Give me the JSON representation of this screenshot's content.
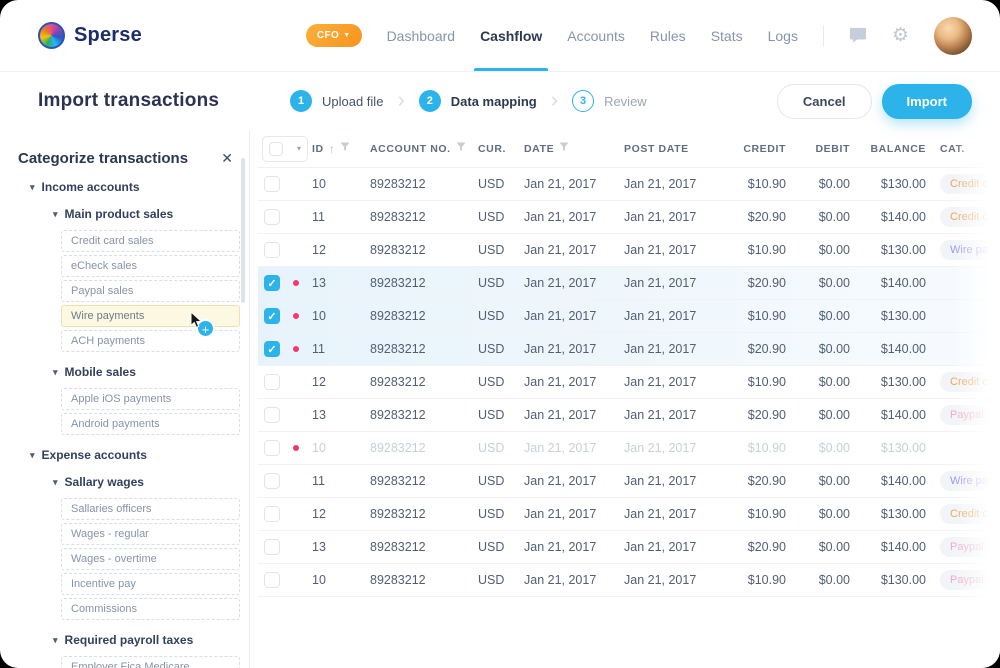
{
  "brand": {
    "name": "Sperse"
  },
  "topnav": {
    "role_badge": {
      "label": "CFO"
    },
    "items": [
      {
        "label": "Dashboard",
        "active": false
      },
      {
        "label": "Cashflow",
        "active": true
      },
      {
        "label": "Accounts",
        "active": false
      },
      {
        "label": "Rules",
        "active": false
      },
      {
        "label": "Stats",
        "active": false
      },
      {
        "label": "Logs",
        "active": false
      }
    ]
  },
  "page_header": {
    "title": "Import transactions",
    "steps": [
      {
        "number": "1",
        "label": "Upload file",
        "state": "done"
      },
      {
        "number": "2",
        "label": "Data mapping",
        "state": "active"
      },
      {
        "number": "3",
        "label": "Review",
        "state": "upcoming"
      }
    ],
    "cancel_label": "Cancel",
    "import_label": "Import"
  },
  "sidebar": {
    "title": "Categorize transactions",
    "tree": [
      {
        "label": "Income accounts",
        "type": "group1"
      },
      {
        "label": "Main product sales",
        "type": "group2"
      },
      {
        "label": "Credit card sales",
        "type": "leaf"
      },
      {
        "label": "eCheck sales",
        "type": "leaf"
      },
      {
        "label": "Paypal sales",
        "type": "leaf"
      },
      {
        "label": "Wire payments",
        "type": "leaf",
        "highlighted": true
      },
      {
        "label": "ACH payments",
        "type": "leaf"
      },
      {
        "label": "Mobile sales",
        "type": "group2"
      },
      {
        "label": "Apple iOS payments",
        "type": "leaf"
      },
      {
        "label": "Android payments",
        "type": "leaf"
      },
      {
        "label": "Expense accounts",
        "type": "group1"
      },
      {
        "label": "Sallary wages",
        "type": "group2"
      },
      {
        "label": "Sallaries officers",
        "type": "leaf"
      },
      {
        "label": "Wages - regular",
        "type": "leaf"
      },
      {
        "label": "Wages - overtime",
        "type": "leaf"
      },
      {
        "label": "Incentive pay",
        "type": "leaf"
      },
      {
        "label": "Commissions",
        "type": "leaf"
      },
      {
        "label": "Required payroll taxes",
        "type": "group2"
      },
      {
        "label": "Employer Fica Medicare",
        "type": "leaf"
      }
    ]
  },
  "table": {
    "columns": [
      {
        "key": "id",
        "label": "ID",
        "sort": true,
        "filter": true
      },
      {
        "key": "acct",
        "label": "ACCOUNT NO.",
        "filter": true
      },
      {
        "key": "cur",
        "label": "CUR."
      },
      {
        "key": "date",
        "label": "DATE",
        "filter": true
      },
      {
        "key": "post",
        "label": "POST DATE"
      },
      {
        "key": "credit",
        "label": "CREDIT"
      },
      {
        "key": "debit",
        "label": "DEBIT"
      },
      {
        "key": "balance",
        "label": "BALANCE"
      },
      {
        "key": "cat",
        "label": "CAT."
      }
    ],
    "rows": [
      {
        "id": "10",
        "acct": "89283212",
        "cur": "USD",
        "date": "Jan 21, 2017",
        "post": "Jan 21, 2017",
        "credit": "$10.90",
        "debit": "$0.00",
        "balance": "$130.00",
        "cat": "Credit card sales",
        "cat_color": "orange",
        "checked": false,
        "dot": false,
        "muted": false
      },
      {
        "id": "11",
        "acct": "89283212",
        "cur": "USD",
        "date": "Jan 21, 2017",
        "post": "Jan 21, 2017",
        "credit": "$20.90",
        "debit": "$0.00",
        "balance": "$140.00",
        "cat": "Credit card sales",
        "cat_color": "orange",
        "checked": false,
        "dot": false,
        "muted": false
      },
      {
        "id": "12",
        "acct": "89283212",
        "cur": "USD",
        "date": "Jan 21, 2017",
        "post": "Jan 21, 2017",
        "credit": "$10.90",
        "debit": "$0.00",
        "balance": "$130.00",
        "cat": "Wire payments",
        "cat_color": "purple",
        "checked": false,
        "dot": false,
        "muted": false
      },
      {
        "id": "13",
        "acct": "89283212",
        "cur": "USD",
        "date": "Jan 21, 2017",
        "post": "Jan 21, 2017",
        "credit": "$20.90",
        "debit": "$0.00",
        "balance": "$140.00",
        "cat": null,
        "cat_color": null,
        "checked": true,
        "dot": true,
        "muted": false
      },
      {
        "id": "10",
        "acct": "89283212",
        "cur": "USD",
        "date": "Jan 21, 2017",
        "post": "Jan 21, 2017",
        "credit": "$10.90",
        "debit": "$0.00",
        "balance": "$130.00",
        "cat": null,
        "cat_color": null,
        "checked": true,
        "dot": true,
        "muted": false
      },
      {
        "id": "11",
        "acct": "89283212",
        "cur": "USD",
        "date": "Jan 21, 2017",
        "post": "Jan 21, 2017",
        "credit": "$20.90",
        "debit": "$0.00",
        "balance": "$140.00",
        "cat": null,
        "cat_color": null,
        "checked": true,
        "dot": true,
        "muted": false
      },
      {
        "id": "12",
        "acct": "89283212",
        "cur": "USD",
        "date": "Jan 21, 2017",
        "post": "Jan 21, 2017",
        "credit": "$10.90",
        "debit": "$0.00",
        "balance": "$130.00",
        "cat": "Credit card sales",
        "cat_color": "orange",
        "checked": false,
        "dot": false,
        "muted": false
      },
      {
        "id": "13",
        "acct": "89283212",
        "cur": "USD",
        "date": "Jan 21, 2017",
        "post": "Jan 21, 2017",
        "credit": "$20.90",
        "debit": "$0.00",
        "balance": "$140.00",
        "cat": "Paypal sales",
        "cat_color": "pink",
        "checked": false,
        "dot": false,
        "muted": false
      },
      {
        "id": "10",
        "acct": "89283212",
        "cur": "USD",
        "date": "Jan 21, 2017",
        "post": "Jan 21, 2017",
        "credit": "$10.90",
        "debit": "$0.00",
        "balance": "$130.00",
        "cat": null,
        "cat_color": null,
        "checked": false,
        "dot": true,
        "muted": true
      },
      {
        "id": "11",
        "acct": "89283212",
        "cur": "USD",
        "date": "Jan 21, 2017",
        "post": "Jan 21, 2017",
        "credit": "$20.90",
        "debit": "$0.00",
        "balance": "$140.00",
        "cat": "Wire payments",
        "cat_color": "purple",
        "checked": false,
        "dot": false,
        "muted": false
      },
      {
        "id": "12",
        "acct": "89283212",
        "cur": "USD",
        "date": "Jan 21, 2017",
        "post": "Jan 21, 2017",
        "credit": "$10.90",
        "debit": "$0.00",
        "balance": "$130.00",
        "cat": "Credit card sales",
        "cat_color": "orange",
        "checked": false,
        "dot": false,
        "muted": false
      },
      {
        "id": "13",
        "acct": "89283212",
        "cur": "USD",
        "date": "Jan 21, 2017",
        "post": "Jan 21, 2017",
        "credit": "$20.90",
        "debit": "$0.00",
        "balance": "$140.00",
        "cat": "Paypal sales",
        "cat_color": "pink",
        "checked": false,
        "dot": false,
        "muted": false
      },
      {
        "id": "10",
        "acct": "89283212",
        "cur": "USD",
        "date": "Jan 21, 2017",
        "post": "Jan 21, 2017",
        "credit": "$10.90",
        "debit": "$0.00",
        "balance": "$130.00",
        "cat": "Paypal sales",
        "cat_color": "pink",
        "checked": false,
        "dot": false,
        "muted": false
      }
    ]
  },
  "colors": {
    "accent_blue": "#2cb3ea",
    "navy_text": "#2a3450",
    "badge_orange": "#f7a020",
    "selected_row_bg": "#e7f3fb",
    "red_dot": "#f5376b",
    "pill_orange": "#efa54f",
    "pill_purple": "#a492ea",
    "pill_pink": "#f2aac2",
    "highlight_item_bg": "#fdf8e2"
  }
}
